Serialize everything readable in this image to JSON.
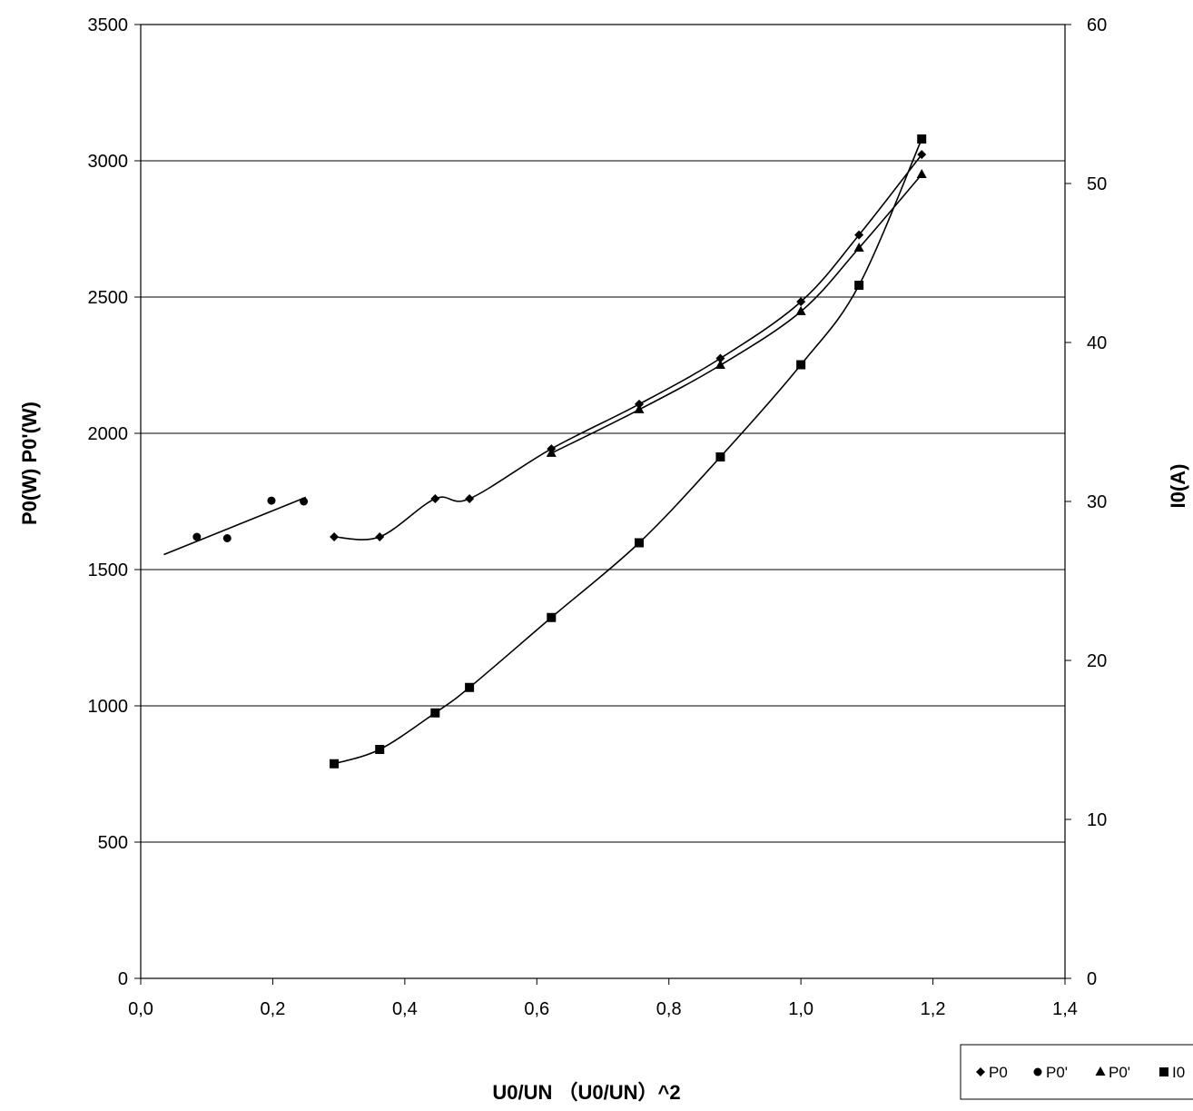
{
  "chart_data": {
    "type": "scatter",
    "xlabel": "U0/UN （U0/UN）^2",
    "ylabel": "P0(W)  P0'(W)",
    "y2label": "I0(A)",
    "xlim": [
      0,
      1.4
    ],
    "ylim": [
      0,
      3500
    ],
    "y2lim": [
      0,
      60
    ],
    "grid": true,
    "legend_position": "bottom-right",
    "x_ticks": [
      "0,0",
      "0,2",
      "0,4",
      "0,6",
      "0,8",
      "1,0",
      "1,2",
      "1,4"
    ],
    "y_ticks": [
      "0",
      "500",
      "1000",
      "1500",
      "2000",
      "2500",
      "3000",
      "3500"
    ],
    "y2_ticks": [
      "0",
      "10",
      "20",
      "30",
      "40",
      "50",
      "60"
    ],
    "trendline_low": {
      "x": [
        0.035,
        0.25
      ],
      "y": [
        1555,
        1765
      ]
    },
    "series": [
      {
        "name": "P0",
        "marker": "diamond",
        "axis": "left",
        "x": [
          0.293,
          0.362,
          0.446,
          0.498,
          0.622,
          0.755,
          0.878,
          1.0,
          1.088,
          1.183
        ],
        "y": [
          1620,
          1620,
          1760,
          1760,
          1943,
          2107,
          2275,
          2483,
          2728,
          3023
        ]
      },
      {
        "name": "P0'",
        "marker": "circle",
        "axis": "left",
        "x": [
          0.085,
          0.131,
          0.198,
          0.247
        ],
        "y": [
          1620,
          1615,
          1753,
          1750
        ]
      },
      {
        "name": "P0'",
        "marker": "triangle",
        "axis": "left",
        "x": [
          0.622,
          0.755,
          0.878,
          1.0,
          1.088,
          1.183
        ],
        "y": [
          1927,
          2087,
          2250,
          2447,
          2680,
          2950
        ]
      },
      {
        "name": "I0",
        "marker": "square",
        "axis": "right",
        "x": [
          0.293,
          0.362,
          0.446,
          0.498,
          0.622,
          0.755,
          0.878,
          1.0,
          1.088,
          1.183
        ],
        "y": [
          13.5,
          14.4,
          16.7,
          18.3,
          22.7,
          27.4,
          32.8,
          38.6,
          43.6,
          52.8
        ]
      }
    ]
  }
}
